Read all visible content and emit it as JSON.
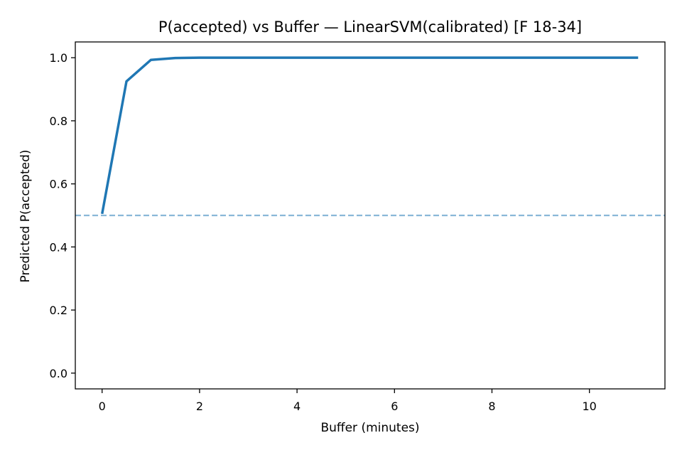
{
  "chart_data": {
    "type": "line",
    "title": "P(accepted) vs Buffer — LinearSVM(calibrated) [F 18-34]",
    "xlabel": "Buffer (minutes)",
    "ylabel": "Predicted P(accepted)",
    "xlim": [
      -0.55,
      11.55
    ],
    "ylim": [
      -0.05,
      1.05
    ],
    "x_ticks": [
      0,
      2,
      4,
      6,
      8,
      10
    ],
    "y_ticks": [
      0.0,
      0.2,
      0.4,
      0.6,
      0.8,
      1.0
    ],
    "y_tick_labels": [
      "0.0",
      "0.2",
      "0.4",
      "0.6",
      "0.8",
      "1.0"
    ],
    "grid": false,
    "series": [
      {
        "color": "#1f77b4",
        "x": [
          0,
          0.5,
          1.0,
          1.5,
          2.0,
          2.5,
          3.0,
          3.5,
          4.0,
          4.5,
          5.0,
          5.5,
          6.0,
          6.5,
          7.0,
          7.5,
          8.0,
          8.5,
          9.0,
          9.5,
          10.0,
          10.5,
          11.0
        ],
        "y": [
          0.505,
          0.925,
          0.993,
          0.999,
          1.0,
          1.0,
          1.0,
          1.0,
          1.0,
          1.0,
          1.0,
          1.0,
          1.0,
          1.0,
          1.0,
          1.0,
          1.0,
          1.0,
          1.0,
          1.0,
          1.0,
          1.0,
          1.0
        ]
      }
    ],
    "reference_line": {
      "y": 0.5,
      "style": "dashed",
      "color": "#8ab8d8"
    }
  }
}
